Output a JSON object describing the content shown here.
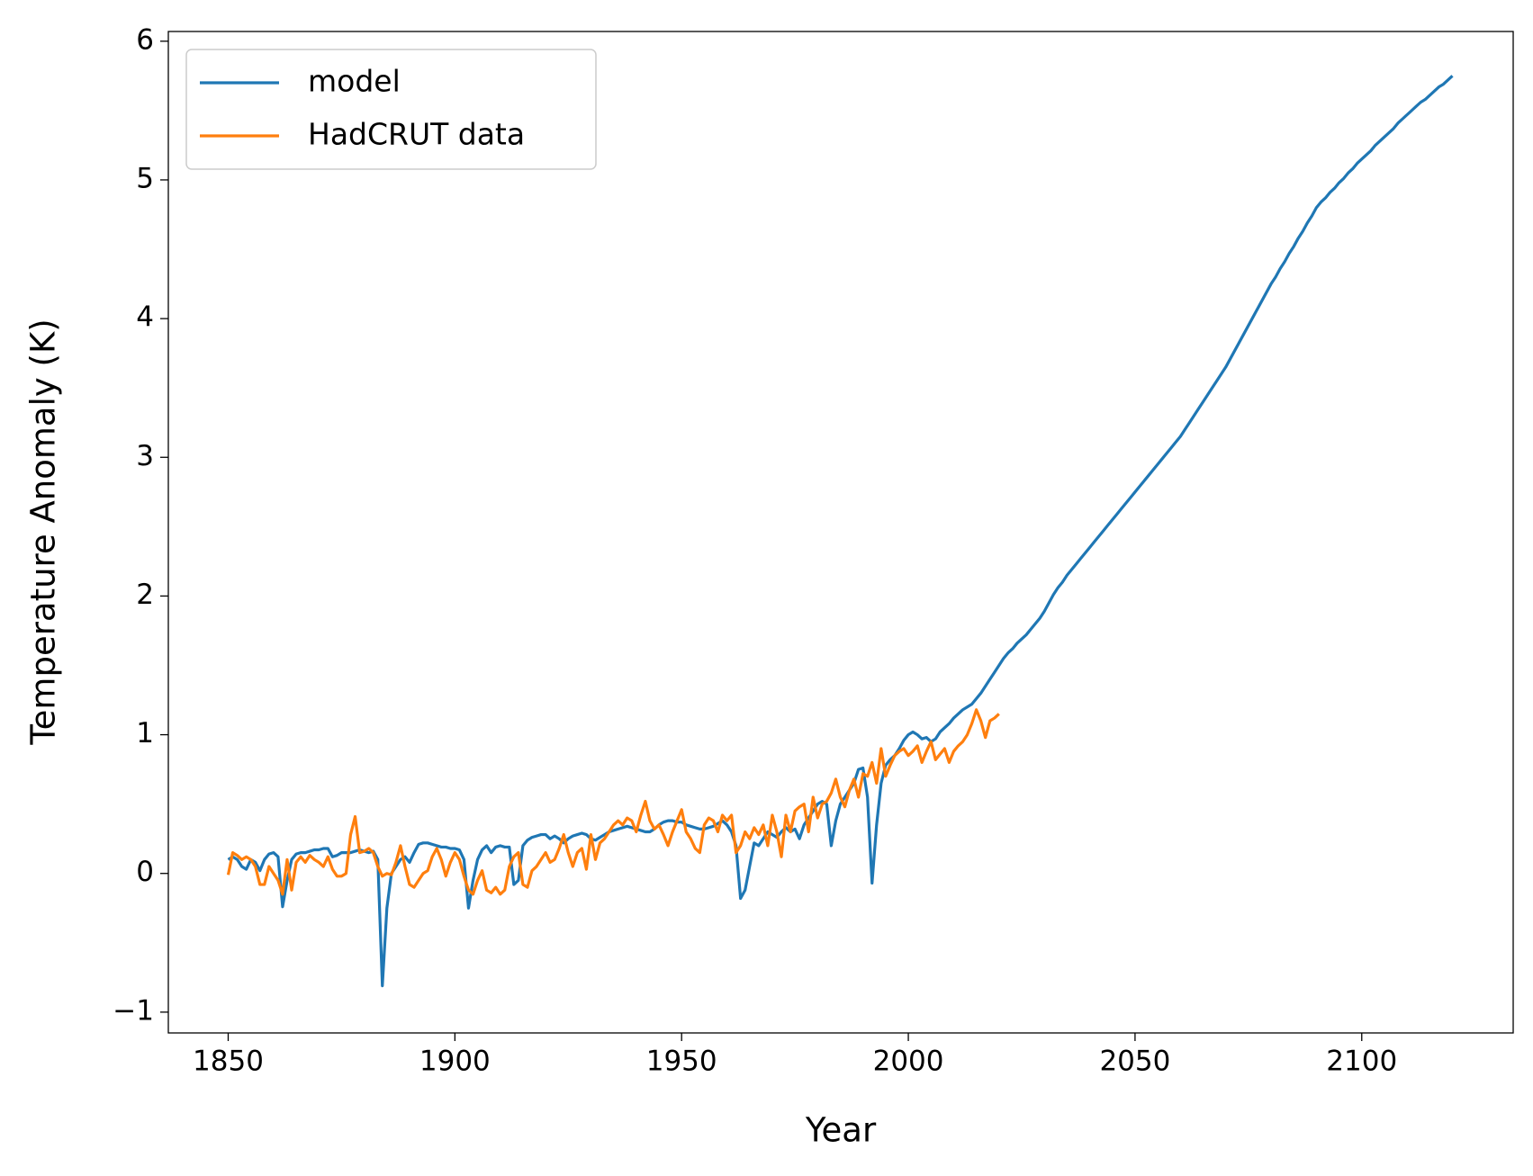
{
  "chart_data": {
    "type": "line",
    "x_label": "Year",
    "y_label": "Temperature Anomaly (K)",
    "x": [
      1850,
      1851,
      1852,
      1853,
      1854,
      1855,
      1856,
      1857,
      1858,
      1859,
      1860,
      1861,
      1862,
      1863,
      1864,
      1865,
      1866,
      1867,
      1868,
      1869,
      1870,
      1871,
      1872,
      1873,
      1874,
      1875,
      1876,
      1877,
      1878,
      1879,
      1880,
      1881,
      1882,
      1883,
      1884,
      1885,
      1886,
      1887,
      1888,
      1889,
      1890,
      1891,
      1892,
      1893,
      1894,
      1895,
      1896,
      1897,
      1898,
      1899,
      1900,
      1901,
      1902,
      1903,
      1904,
      1905,
      1906,
      1907,
      1908,
      1909,
      1910,
      1911,
      1912,
      1913,
      1914,
      1915,
      1916,
      1917,
      1918,
      1919,
      1920,
      1921,
      1922,
      1923,
      1924,
      1925,
      1926,
      1927,
      1928,
      1929,
      1930,
      1931,
      1932,
      1933,
      1934,
      1935,
      1936,
      1937,
      1938,
      1939,
      1940,
      1941,
      1942,
      1943,
      1944,
      1945,
      1946,
      1947,
      1948,
      1949,
      1950,
      1951,
      1952,
      1953,
      1954,
      1955,
      1956,
      1957,
      1958,
      1959,
      1960,
      1961,
      1962,
      1963,
      1964,
      1965,
      1966,
      1967,
      1968,
      1969,
      1970,
      1971,
      1972,
      1973,
      1974,
      1975,
      1976,
      1977,
      1978,
      1979,
      1980,
      1981,
      1982,
      1983,
      1984,
      1985,
      1986,
      1987,
      1988,
      1989,
      1990,
      1991,
      1992,
      1993,
      1994,
      1995,
      1996,
      1997,
      1998,
      1999,
      2000,
      2001,
      2002,
      2003,
      2004,
      2005,
      2006,
      2007,
      2008,
      2009,
      2010,
      2011,
      2012,
      2013,
      2014,
      2015,
      2016,
      2017,
      2018,
      2019,
      2020,
      2021,
      2022,
      2023,
      2024,
      2025,
      2026,
      2027,
      2028,
      2029,
      2030,
      2031,
      2032,
      2033,
      2034,
      2035,
      2036,
      2037,
      2038,
      2039,
      2040,
      2041,
      2042,
      2043,
      2044,
      2045,
      2046,
      2047,
      2048,
      2049,
      2050,
      2051,
      2052,
      2053,
      2054,
      2055,
      2056,
      2057,
      2058,
      2059,
      2060,
      2061,
      2062,
      2063,
      2064,
      2065,
      2066,
      2067,
      2068,
      2069,
      2070,
      2071,
      2072,
      2073,
      2074,
      2075,
      2076,
      2077,
      2078,
      2079,
      2080,
      2081,
      2082,
      2083,
      2084,
      2085,
      2086,
      2087,
      2088,
      2089,
      2090,
      2091,
      2092,
      2093,
      2094,
      2095,
      2096,
      2097,
      2098,
      2099,
      2100,
      2101,
      2102,
      2103,
      2104,
      2105,
      2106,
      2107,
      2108,
      2109,
      2110,
      2111,
      2112,
      2113,
      2114,
      2115,
      2116,
      2117,
      2118,
      2119,
      2120
    ],
    "series": [
      {
        "name": "model",
        "color": "#1f77b4",
        "values": [
          0.1,
          0.12,
          0.1,
          0.05,
          0.03,
          0.1,
          0.08,
          0.02,
          0.1,
          0.14,
          0.15,
          0.12,
          -0.24,
          -0.05,
          0.1,
          0.14,
          0.15,
          0.15,
          0.16,
          0.17,
          0.17,
          0.18,
          0.18,
          0.12,
          0.13,
          0.15,
          0.15,
          0.15,
          0.16,
          0.17,
          0.16,
          0.15,
          0.16,
          0.1,
          -0.81,
          -0.25,
          0.0,
          0.05,
          0.1,
          0.12,
          0.08,
          0.15,
          0.21,
          0.22,
          0.22,
          0.21,
          0.2,
          0.19,
          0.19,
          0.18,
          0.18,
          0.17,
          0.1,
          -0.25,
          -0.05,
          0.1,
          0.17,
          0.2,
          0.15,
          0.19,
          0.2,
          0.19,
          0.19,
          -0.08,
          -0.05,
          0.2,
          0.24,
          0.26,
          0.27,
          0.28,
          0.28,
          0.25,
          0.27,
          0.25,
          0.22,
          0.25,
          0.27,
          0.28,
          0.29,
          0.28,
          0.25,
          0.24,
          0.26,
          0.28,
          0.3,
          0.31,
          0.32,
          0.33,
          0.34,
          0.33,
          0.32,
          0.31,
          0.3,
          0.3,
          0.32,
          0.35,
          0.37,
          0.38,
          0.38,
          0.37,
          0.37,
          0.35,
          0.34,
          0.33,
          0.32,
          0.32,
          0.33,
          0.34,
          0.36,
          0.38,
          0.35,
          0.3,
          0.2,
          -0.18,
          -0.12,
          0.05,
          0.22,
          0.2,
          0.25,
          0.3,
          0.28,
          0.26,
          0.3,
          0.33,
          0.3,
          0.32,
          0.25,
          0.35,
          0.4,
          0.45,
          0.5,
          0.52,
          0.5,
          0.2,
          0.38,
          0.5,
          0.55,
          0.6,
          0.65,
          0.75,
          0.76,
          0.55,
          -0.07,
          0.35,
          0.65,
          0.78,
          0.82,
          0.85,
          0.9,
          0.96,
          1.0,
          1.02,
          1.0,
          0.97,
          0.98,
          0.95,
          0.97,
          1.02,
          1.05,
          1.08,
          1.12,
          1.15,
          1.18,
          1.2,
          1.22,
          1.26,
          1.3,
          1.35,
          1.4,
          1.45,
          1.5,
          1.55,
          1.59,
          1.62,
          1.66,
          1.69,
          1.72,
          1.76,
          1.8,
          1.84,
          1.89,
          1.95,
          2.01,
          2.06,
          2.1,
          2.15,
          2.19,
          2.23,
          2.27,
          2.31,
          2.35,
          2.39,
          2.43,
          2.47,
          2.51,
          2.55,
          2.59,
          2.63,
          2.67,
          2.71,
          2.75,
          2.79,
          2.83,
          2.87,
          2.91,
          2.95,
          2.99,
          3.03,
          3.07,
          3.11,
          3.15,
          3.2,
          3.25,
          3.3,
          3.35,
          3.4,
          3.45,
          3.5,
          3.55,
          3.6,
          3.65,
          3.71,
          3.77,
          3.83,
          3.89,
          3.95,
          4.01,
          4.07,
          4.13,
          4.19,
          4.25,
          4.3,
          4.36,
          4.41,
          4.47,
          4.52,
          4.58,
          4.63,
          4.69,
          4.74,
          4.8,
          4.84,
          4.87,
          4.91,
          4.94,
          4.98,
          5.01,
          5.05,
          5.08,
          5.12,
          5.15,
          5.18,
          5.21,
          5.25,
          5.28,
          5.31,
          5.34,
          5.37,
          5.41,
          5.44,
          5.47,
          5.5,
          5.53,
          5.56,
          5.58,
          5.61,
          5.64,
          5.67,
          5.69,
          5.72,
          5.75
        ]
      },
      {
        "name": "HadCRUT data",
        "color": "#ff7f0e",
        "values": [
          -0.01,
          0.15,
          0.13,
          0.1,
          0.12,
          0.1,
          0.05,
          -0.08,
          -0.08,
          0.05,
          0.0,
          -0.05,
          -0.15,
          0.1,
          -0.12,
          0.08,
          0.12,
          0.08,
          0.13,
          0.1,
          0.08,
          0.05,
          0.12,
          0.03,
          -0.02,
          -0.02,
          0.0,
          0.28,
          0.41,
          0.15,
          0.16,
          0.18,
          0.15,
          0.05,
          -0.02,
          0.0,
          -0.01,
          0.08,
          0.2,
          0.05,
          -0.08,
          -0.1,
          -0.05,
          0.0,
          0.02,
          0.12,
          0.18,
          0.1,
          -0.02,
          0.08,
          0.15,
          0.1,
          -0.02,
          -0.12,
          -0.15,
          -0.05,
          0.02,
          -0.12,
          -0.14,
          -0.1,
          -0.15,
          -0.12,
          0.05,
          0.12,
          0.15,
          -0.08,
          -0.1,
          0.02,
          0.05,
          0.1,
          0.15,
          0.08,
          0.1,
          0.18,
          0.28,
          0.15,
          0.05,
          0.15,
          0.18,
          0.03,
          0.28,
          0.1,
          0.22,
          0.25,
          0.3,
          0.35,
          0.38,
          0.35,
          0.4,
          0.38,
          0.3,
          0.42,
          0.52,
          0.38,
          0.32,
          0.35,
          0.28,
          0.2,
          0.3,
          0.38,
          0.46,
          0.3,
          0.25,
          0.18,
          0.15,
          0.35,
          0.4,
          0.38,
          0.3,
          0.42,
          0.38,
          0.42,
          0.15,
          0.2,
          0.3,
          0.25,
          0.33,
          0.28,
          0.35,
          0.2,
          0.42,
          0.3,
          0.12,
          0.42,
          0.3,
          0.45,
          0.48,
          0.5,
          0.3,
          0.55,
          0.4,
          0.5,
          0.52,
          0.58,
          0.68,
          0.55,
          0.48,
          0.6,
          0.68,
          0.55,
          0.72,
          0.7,
          0.8,
          0.65,
          0.9,
          0.7,
          0.78,
          0.85,
          0.88,
          0.9,
          0.85,
          0.88,
          0.92,
          0.8,
          0.88,
          0.95,
          0.82,
          0.86,
          0.9,
          0.8,
          0.88,
          0.92,
          0.95,
          1.0,
          1.08,
          1.18,
          1.1,
          0.98,
          1.1,
          1.12,
          1.15,
          null,
          null,
          null,
          null,
          null,
          null,
          null,
          null,
          null,
          null,
          null,
          null,
          null,
          null,
          null,
          null,
          null,
          null,
          null,
          null,
          null,
          null,
          null,
          null,
          null,
          null,
          null,
          null,
          null,
          null,
          null,
          null,
          null,
          null,
          null,
          null,
          null,
          null,
          null,
          null,
          null,
          null,
          null,
          null,
          null,
          null,
          null,
          null,
          null,
          null,
          null,
          null,
          null,
          null,
          null,
          null,
          null,
          null,
          null,
          null,
          null,
          null,
          null,
          null,
          null,
          null,
          null,
          null,
          null,
          null,
          null,
          null,
          null,
          null,
          null,
          null,
          null,
          null,
          null,
          null,
          null,
          null,
          null,
          null,
          null,
          null,
          null,
          null,
          null,
          null,
          null,
          null,
          null,
          null,
          null,
          null,
          null,
          null,
          null,
          null
        ]
      }
    ],
    "xlim": [
      1836.8,
      2133.4
    ],
    "ylim": [
      -1.15,
      6.07
    ],
    "xticks": [
      1850,
      1900,
      1950,
      2000,
      2050,
      2100
    ],
    "yticks": [
      {
        "value": -1,
        "label": "−1"
      },
      0,
      1,
      2,
      3,
      4,
      5,
      6
    ],
    "grid": false,
    "legend": "upper left"
  }
}
